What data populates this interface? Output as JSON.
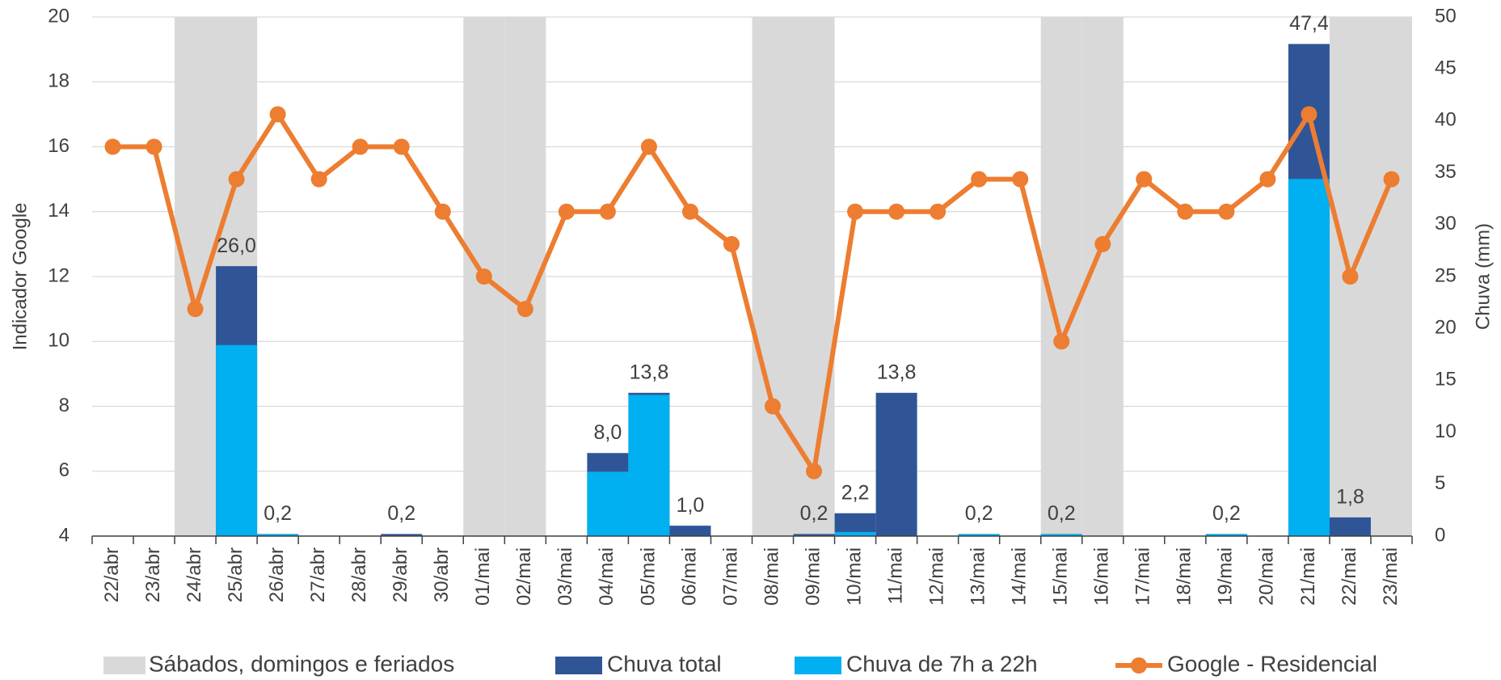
{
  "chart_data": {
    "type": "bar",
    "y_label": "Indicador Google",
    "y2_label": "Chuva (mm)",
    "categories": [
      "22/abr",
      "23/abr",
      "24/abr",
      "25/abr",
      "26/abr",
      "27/abr",
      "28/abr",
      "29/abr",
      "30/abr",
      "01/mai",
      "02/mai",
      "03/mai",
      "04/mai",
      "05/mai",
      "06/mai",
      "07/mai",
      "08/mai",
      "09/mai",
      "10/mai",
      "11/mai",
      "12/mai",
      "13/mai",
      "14/mai",
      "15/mai",
      "16/mai",
      "17/mai",
      "18/mai",
      "19/mai",
      "20/mai",
      "21/mai",
      "22/mai",
      "23/mai"
    ],
    "ylim": [
      4,
      20
    ],
    "yticks": [
      4,
      6,
      8,
      10,
      12,
      14,
      16,
      18,
      20
    ],
    "y2lim": [
      0,
      50
    ],
    "y2ticks": [
      0,
      5,
      10,
      15,
      20,
      25,
      30,
      35,
      40,
      45,
      50
    ],
    "grid": true,
    "legend": "bottom",
    "shading": {
      "name": "Sábados, domingos e feriados",
      "color": "#d9d9d9",
      "category_indices": [
        2,
        3,
        9,
        10,
        16,
        17,
        23,
        24,
        30,
        31
      ]
    },
    "series": [
      {
        "name": "Chuva total",
        "type": "bar",
        "axis": "y2",
        "color": "#2f5597",
        "values": [
          null,
          null,
          null,
          26.0,
          0.2,
          null,
          null,
          0.2,
          null,
          null,
          null,
          null,
          8.0,
          13.8,
          1.0,
          null,
          null,
          0.2,
          2.2,
          13.8,
          null,
          0.2,
          null,
          0.2,
          null,
          null,
          null,
          0.2,
          null,
          47.4,
          1.8,
          null
        ],
        "value_labels": [
          null,
          null,
          null,
          "26,0",
          "0,2",
          null,
          null,
          "0,2",
          null,
          null,
          null,
          null,
          "8,0",
          "13,8",
          "1,0",
          null,
          null,
          "0,2",
          "2,2",
          "13,8",
          null,
          "0,2",
          null,
          "0,2",
          null,
          null,
          null,
          "0,2",
          null,
          "47,4",
          "1,8",
          null
        ]
      },
      {
        "name": "Chuva de 7h a 22h",
        "type": "bar",
        "axis": "y2",
        "color": "#00b0f0",
        "values": [
          null,
          null,
          null,
          18.4,
          0.2,
          null,
          null,
          null,
          null,
          null,
          null,
          null,
          6.2,
          13.6,
          null,
          null,
          null,
          null,
          0.4,
          null,
          null,
          0.2,
          null,
          0.2,
          null,
          null,
          null,
          0.2,
          null,
          34.4,
          null,
          null
        ]
      },
      {
        "name": "Google - Residencial",
        "type": "line",
        "color": "#ed7d31",
        "values": [
          16,
          16,
          11,
          15,
          17,
          15,
          16,
          16,
          14,
          12,
          11,
          14,
          14,
          16,
          14,
          13,
          8,
          6,
          14,
          14,
          14,
          15,
          15,
          10,
          13,
          15,
          14,
          14,
          15,
          17,
          12,
          15
        ]
      }
    ]
  }
}
